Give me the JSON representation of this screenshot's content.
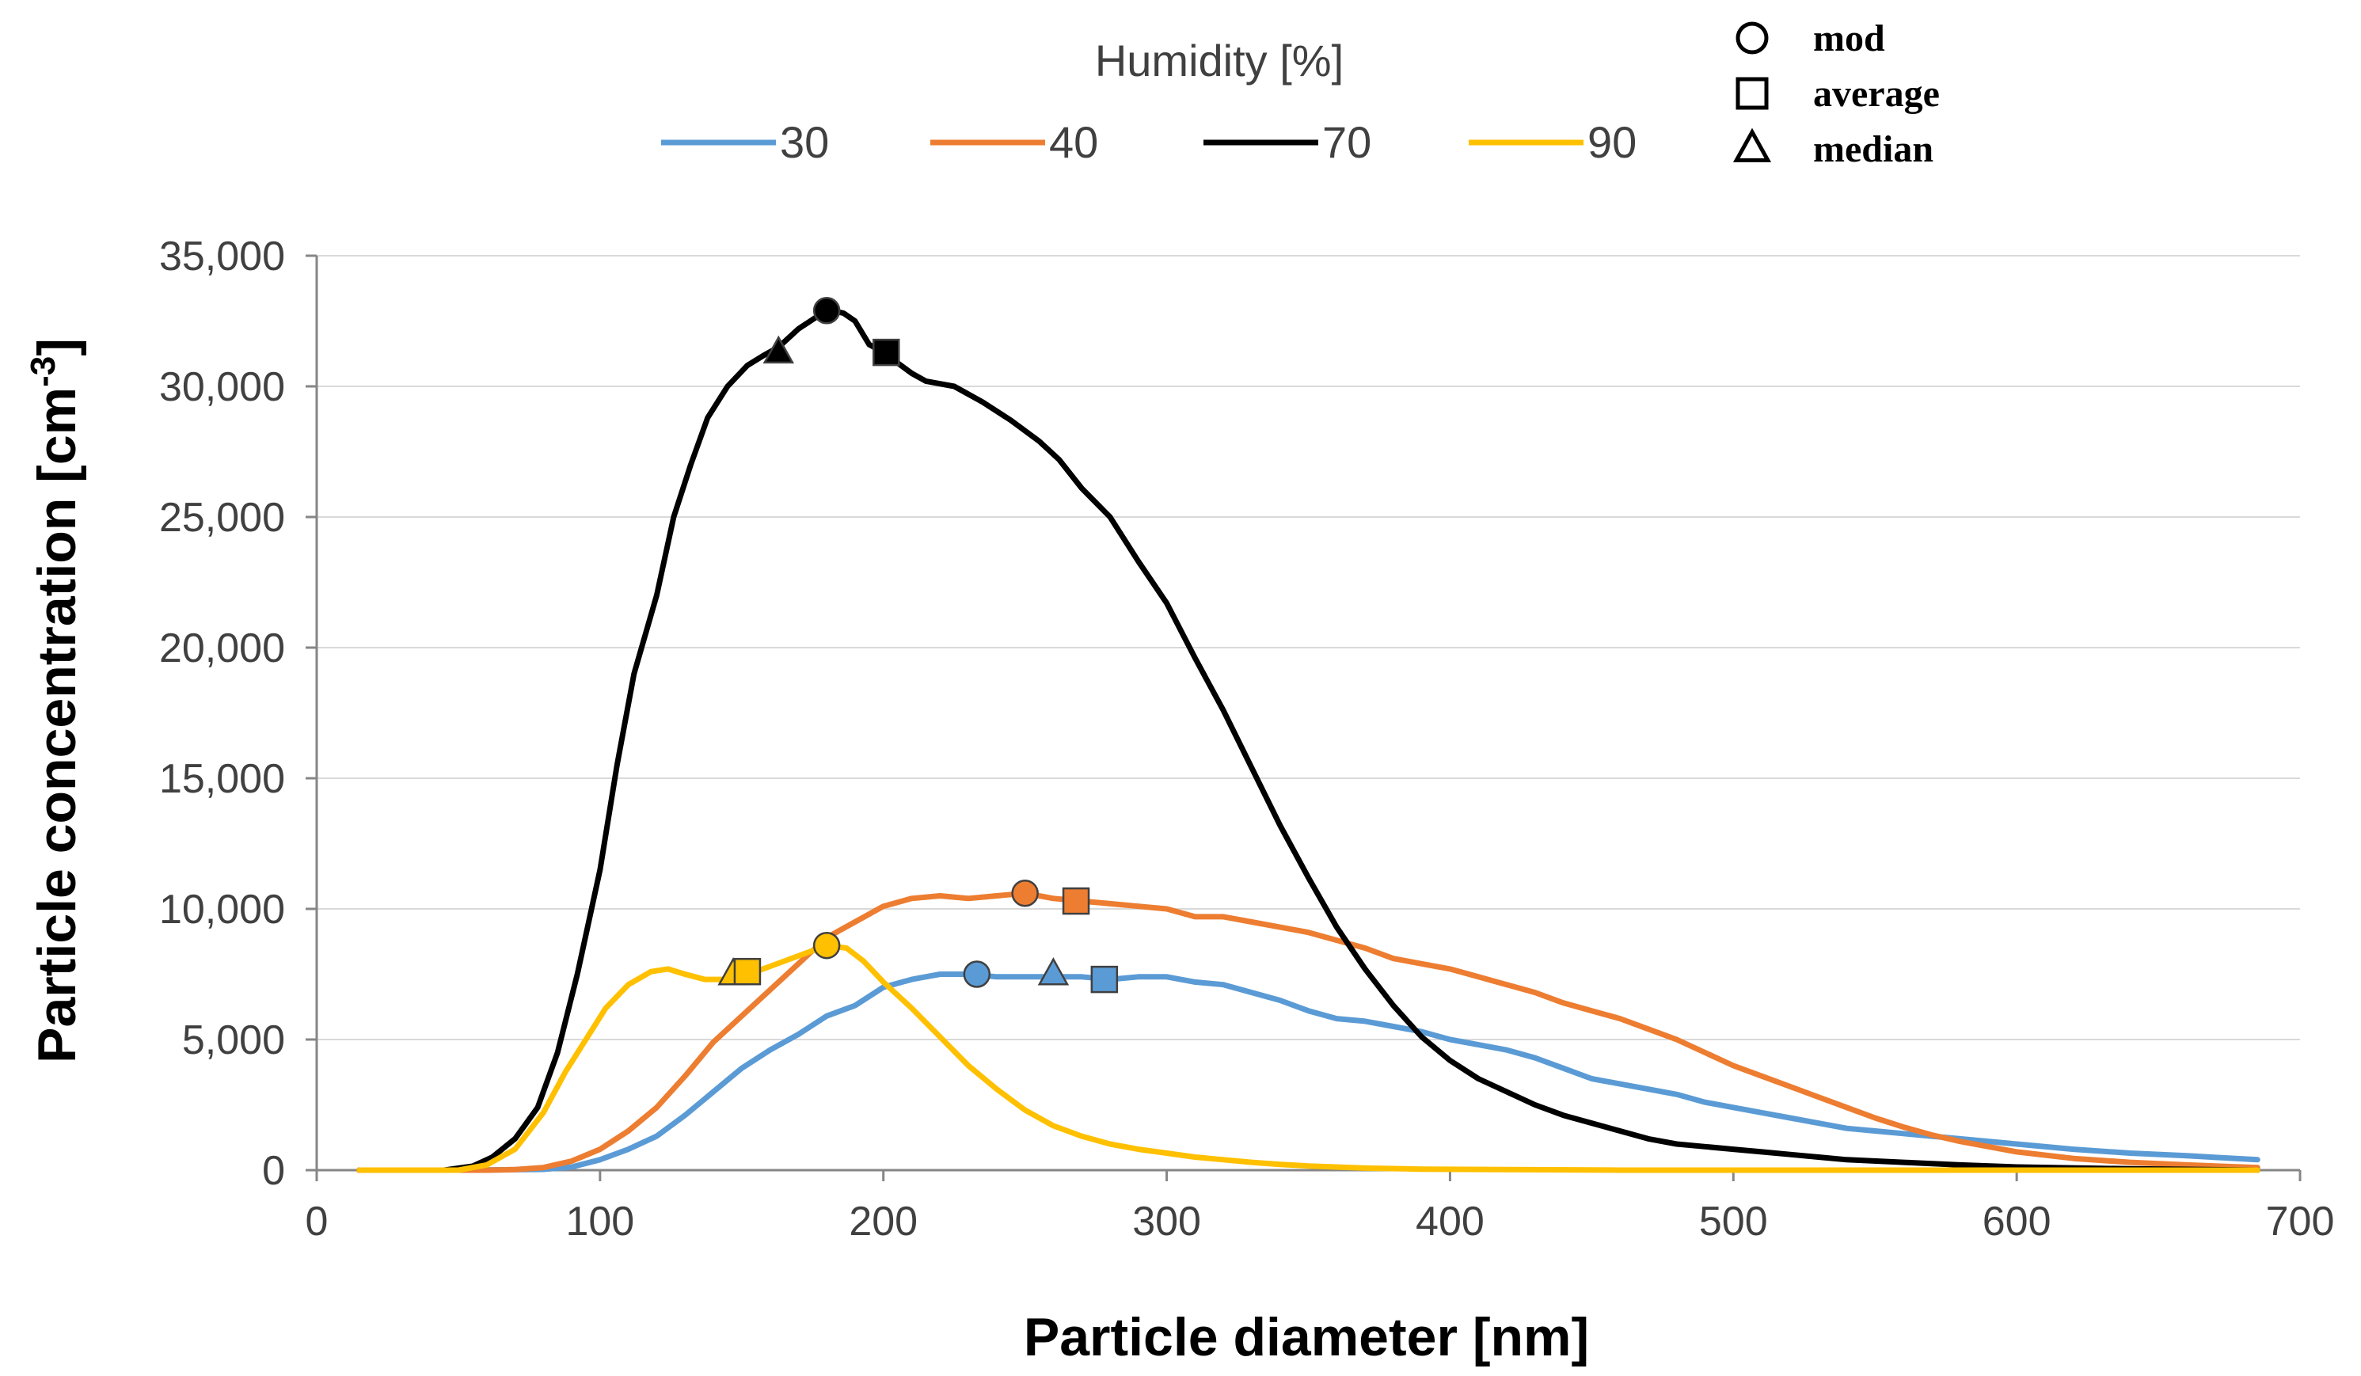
{
  "chart_data": {
    "type": "line",
    "xlabel": "Particle diameter  [nm]",
    "ylabel_main": "Particle concentration [cm",
    "ylabel_sup": "-3",
    "ylabel_close": "]",
    "xlim": [
      0,
      700
    ],
    "ylim": [
      0,
      35000
    ],
    "x_ticks": [
      0,
      100,
      200,
      300,
      400,
      500,
      600,
      700
    ],
    "x_tick_labels": [
      "0",
      "100",
      "200",
      "300",
      "400",
      "500",
      "600",
      "700"
    ],
    "y_ticks": [
      0,
      5000,
      10000,
      15000,
      20000,
      25000,
      30000,
      35000
    ],
    "y_tick_labels": [
      "0",
      "5,000",
      "10,000",
      "15,000",
      "20,000",
      "25,000",
      "30,000",
      "35,000"
    ],
    "grid": "horizontal",
    "legend_title": "Humidity   [%]",
    "legend_placement": "top",
    "marker_legend": [
      {
        "shape": "circle",
        "label": "mod"
      },
      {
        "shape": "square",
        "label": "average"
      },
      {
        "shape": "triangle",
        "label": "median"
      }
    ],
    "series": [
      {
        "name": "30",
        "color": "#5b9bd5",
        "points": [
          [
            15,
            0
          ],
          [
            50,
            0
          ],
          [
            80,
            30
          ],
          [
            90,
            120
          ],
          [
            100,
            400
          ],
          [
            110,
            800
          ],
          [
            120,
            1300
          ],
          [
            130,
            2100
          ],
          [
            140,
            3000
          ],
          [
            150,
            3900
          ],
          [
            160,
            4600
          ],
          [
            170,
            5200
          ],
          [
            180,
            5900
          ],
          [
            190,
            6300
          ],
          [
            200,
            7000
          ],
          [
            210,
            7300
          ],
          [
            220,
            7500
          ],
          [
            230,
            7500
          ],
          [
            240,
            7400
          ],
          [
            250,
            7400
          ],
          [
            260,
            7400
          ],
          [
            270,
            7400
          ],
          [
            280,
            7300
          ],
          [
            290,
            7400
          ],
          [
            300,
            7400
          ],
          [
            310,
            7200
          ],
          [
            320,
            7100
          ],
          [
            330,
            6800
          ],
          [
            340,
            6500
          ],
          [
            350,
            6100
          ],
          [
            360,
            5800
          ],
          [
            370,
            5700
          ],
          [
            380,
            5500
          ],
          [
            390,
            5300
          ],
          [
            400,
            5000
          ],
          [
            410,
            4800
          ],
          [
            420,
            4600
          ],
          [
            430,
            4300
          ],
          [
            440,
            3900
          ],
          [
            450,
            3500
          ],
          [
            460,
            3300
          ],
          [
            470,
            3100
          ],
          [
            480,
            2900
          ],
          [
            490,
            2600
          ],
          [
            500,
            2400
          ],
          [
            510,
            2200
          ],
          [
            520,
            2000
          ],
          [
            530,
            1800
          ],
          [
            540,
            1600
          ],
          [
            550,
            1500
          ],
          [
            560,
            1400
          ],
          [
            570,
            1300
          ],
          [
            580,
            1200
          ],
          [
            600,
            1000
          ],
          [
            620,
            800
          ],
          [
            640,
            650
          ],
          [
            660,
            550
          ],
          [
            685,
            400
          ]
        ]
      },
      {
        "name": "40",
        "color": "#ed7d31",
        "points": [
          [
            15,
            0
          ],
          [
            60,
            0
          ],
          [
            70,
            20
          ],
          [
            80,
            100
          ],
          [
            90,
            350
          ],
          [
            100,
            800
          ],
          [
            110,
            1500
          ],
          [
            120,
            2400
          ],
          [
            130,
            3600
          ],
          [
            140,
            4900
          ],
          [
            150,
            5900
          ],
          [
            160,
            6900
          ],
          [
            170,
            7900
          ],
          [
            180,
            8900
          ],
          [
            190,
            9500
          ],
          [
            200,
            10100
          ],
          [
            210,
            10400
          ],
          [
            220,
            10500
          ],
          [
            230,
            10400
          ],
          [
            240,
            10500
          ],
          [
            250,
            10600
          ],
          [
            260,
            10400
          ],
          [
            270,
            10300
          ],
          [
            280,
            10200
          ],
          [
            290,
            10100
          ],
          [
            300,
            10000
          ],
          [
            310,
            9700
          ],
          [
            320,
            9700
          ],
          [
            330,
            9500
          ],
          [
            340,
            9300
          ],
          [
            350,
            9100
          ],
          [
            360,
            8800
          ],
          [
            370,
            8500
          ],
          [
            380,
            8100
          ],
          [
            390,
            7900
          ],
          [
            400,
            7700
          ],
          [
            410,
            7400
          ],
          [
            420,
            7100
          ],
          [
            430,
            6800
          ],
          [
            440,
            6400
          ],
          [
            450,
            6100
          ],
          [
            460,
            5800
          ],
          [
            470,
            5400
          ],
          [
            480,
            5000
          ],
          [
            490,
            4500
          ],
          [
            500,
            4000
          ],
          [
            510,
            3600
          ],
          [
            520,
            3200
          ],
          [
            530,
            2800
          ],
          [
            540,
            2400
          ],
          [
            550,
            2000
          ],
          [
            560,
            1650
          ],
          [
            570,
            1350
          ],
          [
            580,
            1100
          ],
          [
            590,
            900
          ],
          [
            600,
            700
          ],
          [
            620,
            450
          ],
          [
            640,
            300
          ],
          [
            660,
            200
          ],
          [
            685,
            100
          ]
        ]
      },
      {
        "name": "70",
        "color": "#000000",
        "points": [
          [
            15,
            0
          ],
          [
            45,
            0
          ],
          [
            55,
            150
          ],
          [
            62,
            500
          ],
          [
            70,
            1200
          ],
          [
            78,
            2400
          ],
          [
            85,
            4500
          ],
          [
            92,
            7500
          ],
          [
            100,
            11500
          ],
          [
            106,
            15500
          ],
          [
            112,
            19000
          ],
          [
            120,
            22000
          ],
          [
            126,
            25000
          ],
          [
            132,
            27000
          ],
          [
            138,
            28800
          ],
          [
            145,
            30000
          ],
          [
            152,
            30800
          ],
          [
            158,
            31200
          ],
          [
            163,
            31500
          ],
          [
            170,
            32200
          ],
          [
            177,
            32700
          ],
          [
            182,
            32900
          ],
          [
            186,
            32800
          ],
          [
            190,
            32500
          ],
          [
            195,
            31600
          ],
          [
            200,
            31300
          ],
          [
            205,
            30900
          ],
          [
            210,
            30500
          ],
          [
            215,
            30200
          ],
          [
            225,
            30000
          ],
          [
            235,
            29400
          ],
          [
            245,
            28700
          ],
          [
            255,
            27900
          ],
          [
            262,
            27200
          ],
          [
            270,
            26100
          ],
          [
            280,
            25000
          ],
          [
            290,
            23300
          ],
          [
            300,
            21700
          ],
          [
            310,
            19600
          ],
          [
            320,
            17600
          ],
          [
            330,
            15400
          ],
          [
            340,
            13200
          ],
          [
            350,
            11200
          ],
          [
            360,
            9300
          ],
          [
            370,
            7700
          ],
          [
            380,
            6300
          ],
          [
            390,
            5100
          ],
          [
            400,
            4200
          ],
          [
            410,
            3500
          ],
          [
            420,
            3000
          ],
          [
            430,
            2500
          ],
          [
            440,
            2100
          ],
          [
            450,
            1800
          ],
          [
            460,
            1500
          ],
          [
            470,
            1200
          ],
          [
            480,
            1000
          ],
          [
            490,
            900
          ],
          [
            500,
            800
          ],
          [
            510,
            700
          ],
          [
            520,
            600
          ],
          [
            530,
            500
          ],
          [
            540,
            400
          ],
          [
            560,
            300
          ],
          [
            580,
            200
          ],
          [
            600,
            120
          ],
          [
            640,
            50
          ],
          [
            685,
            0
          ]
        ]
      },
      {
        "name": "90",
        "color": "#ffc000",
        "points": [
          [
            15,
            0
          ],
          [
            50,
            0
          ],
          [
            60,
            200
          ],
          [
            70,
            800
          ],
          [
            80,
            2200
          ],
          [
            88,
            3800
          ],
          [
            95,
            5000
          ],
          [
            102,
            6200
          ],
          [
            110,
            7100
          ],
          [
            118,
            7600
          ],
          [
            124,
            7700
          ],
          [
            130,
            7500
          ],
          [
            137,
            7300
          ],
          [
            145,
            7300
          ],
          [
            150,
            7400
          ],
          [
            160,
            7800
          ],
          [
            170,
            8200
          ],
          [
            180,
            8600
          ],
          [
            187,
            8500
          ],
          [
            193,
            8000
          ],
          [
            200,
            7200
          ],
          [
            210,
            6200
          ],
          [
            220,
            5100
          ],
          [
            230,
            4000
          ],
          [
            240,
            3100
          ],
          [
            250,
            2300
          ],
          [
            260,
            1700
          ],
          [
            270,
            1300
          ],
          [
            280,
            1000
          ],
          [
            290,
            800
          ],
          [
            300,
            650
          ],
          [
            310,
            500
          ],
          [
            320,
            400
          ],
          [
            330,
            300
          ],
          [
            340,
            220
          ],
          [
            350,
            160
          ],
          [
            370,
            80
          ],
          [
            390,
            40
          ],
          [
            420,
            20
          ],
          [
            460,
            0
          ],
          [
            685,
            0
          ]
        ]
      }
    ],
    "markers": [
      {
        "series": "30",
        "type": "mod",
        "x": 233,
        "y": 7500
      },
      {
        "series": "30",
        "type": "median",
        "x": 260,
        "y": 7500
      },
      {
        "series": "30",
        "type": "average",
        "x": 278,
        "y": 7300
      },
      {
        "series": "40",
        "type": "mod",
        "x": 250,
        "y": 10600
      },
      {
        "series": "40",
        "type": "average",
        "x": 268,
        "y": 10300
      },
      {
        "series": "70",
        "type": "median",
        "x": 163,
        "y": 31300
      },
      {
        "series": "70",
        "type": "mod",
        "x": 180,
        "y": 32900
      },
      {
        "series": "70",
        "type": "average",
        "x": 201,
        "y": 31300
      },
      {
        "series": "90",
        "type": "median",
        "x": 147,
        "y": 7500
      },
      {
        "series": "90",
        "type": "average",
        "x": 152,
        "y": 7600
      },
      {
        "series": "90",
        "type": "mod",
        "x": 180,
        "y": 8600
      }
    ]
  }
}
